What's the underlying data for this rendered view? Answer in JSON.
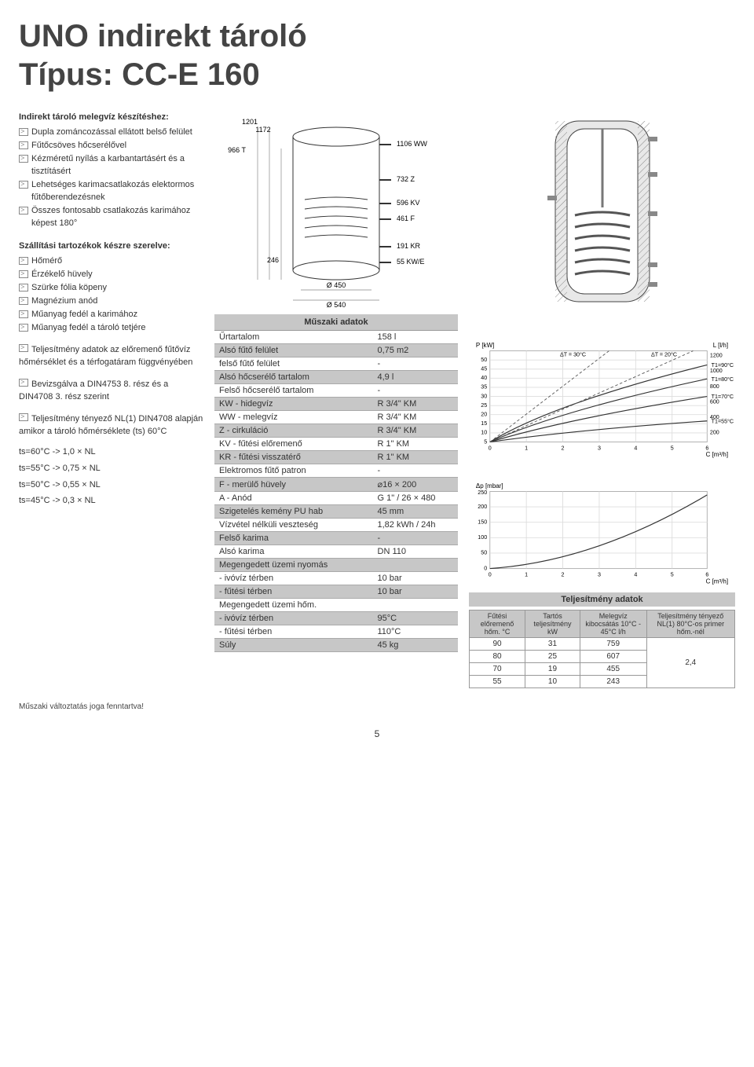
{
  "title_line1": "UNO indirekt tároló",
  "title_line2": "Típus: CC-E 160",
  "section1_head": "Indirekt tároló melegvíz készítéshez:",
  "section1_items": [
    "Dupla zománcozással ellátott belső felület",
    "Fűtőcsöves hőcserélővel",
    "Kézméretű nyílás a karbantartásért és a tisztításért",
    "Lehetséges karimacsatlakozás elektormos fűtőberendezésnek",
    "Összes fontosabb csatlakozás karimához képest 180°"
  ],
  "section2_head": "Szállítási tartozékok készre szerelve:",
  "section2_items": [
    "Hőmérő",
    "Érzékelő hüvely",
    "Szürke fólia köpeny",
    "Magnézium anód",
    "Műanyag fedél a karimához",
    "Műanyag fedél a tároló tetjére"
  ],
  "para1": "Teljesítmény adatok az előremenő fűtővíz hőmérséklet és a térfogatáram függvényében",
  "para2": "Bevizsgálva a DIN4753 8. rész és a DIN4708 3. rész szerint",
  "para3": "Teljesítmény tényező NL(1) DIN4708 alapján amikor a tároló hőmérséklete (ts) 60°C",
  "ts_lines": [
    "ts=60°C -> 1,0 × NL",
    "ts=55°C -> 0,75 × NL",
    "ts=50°C -> 0,55 × NL",
    "ts=45°C -> 0,3 × NL"
  ],
  "spec_header": "Műszaki adatok",
  "spec_rows": [
    {
      "k": "Űrtartalom",
      "v": "158 l",
      "hl": false
    },
    {
      "k": "Alsó fűtő felület",
      "v": "0,75 m2",
      "hl": true
    },
    {
      "k": "felső fűtő felület",
      "v": "-",
      "hl": false
    },
    {
      "k": "Alsó hőcserélő tartalom",
      "v": "4,9 l",
      "hl": true
    },
    {
      "k": "Felső hőcserélő tartalom",
      "v": "-",
      "hl": false
    },
    {
      "k": "KW - hidegvíz",
      "v": "R 3/4\" KM",
      "hl": true
    },
    {
      "k": "WW - melegvíz",
      "v": "R 3/4\" KM",
      "hl": false
    },
    {
      "k": "Z - cirkuláció",
      "v": "R 3/4\" KM",
      "hl": true
    },
    {
      "k": "KV - fűtési előremenő",
      "v": "R 1\" KM",
      "hl": false
    },
    {
      "k": "KR - fűtési visszatérő",
      "v": "R 1\" KM",
      "hl": true
    },
    {
      "k": "Elektromos fűtő patron",
      "v": "-",
      "hl": false
    },
    {
      "k": "F - merülő hüvely",
      "v": "⌀16 × 200",
      "hl": true
    },
    {
      "k": "A - Anód",
      "v": "G 1\" / 26 × 480",
      "hl": false
    },
    {
      "k": "Szigetelés kemény PU hab",
      "v": "45 mm",
      "hl": true
    },
    {
      "k": "Vízvétel nélküli veszteség",
      "v": "1,82 kWh / 24h",
      "hl": false
    },
    {
      "k": "Felső karima",
      "v": "-",
      "hl": true
    },
    {
      "k": "Alsó karima",
      "v": "DN 110",
      "hl": false
    },
    {
      "k": "Megengedett üzemi nyomás",
      "v": "",
      "hl": true
    },
    {
      "k": " - ivóvíz térben",
      "v": "10 bar",
      "hl": false
    },
    {
      "k": " - fűtési térben",
      "v": "10 bar",
      "hl": true
    },
    {
      "k": "Megengedett üzemi hőm.",
      "v": "",
      "hl": false
    },
    {
      "k": " - ivóvíz térben",
      "v": "95°C",
      "hl": true
    },
    {
      "k": " - fűtési térben",
      "v": "110°C",
      "hl": false
    },
    {
      "k": "Súly",
      "v": "45 kg",
      "hl": true
    }
  ],
  "diagram_labels": {
    "top": [
      "1201",
      "1172",
      "966 T",
      "246"
    ],
    "right": [
      "1106 WW",
      "732 Z",
      "596 KV",
      "461 F",
      "191 KR",
      "55 KW/E"
    ],
    "bottom": [
      "Ø 450",
      "Ø 540"
    ]
  },
  "diagram_colors": {
    "stroke": "#333",
    "grid": "#999"
  },
  "chart1": {
    "type": "line",
    "axis_left_label": "P [kW]",
    "axis_right_label": "L [l/h]",
    "y_left_ticks": [
      5,
      10,
      15,
      20,
      25,
      30,
      35,
      40,
      45,
      50
    ],
    "y_right_ticks": [
      200,
      400,
      600,
      800,
      1000,
      1200
    ],
    "x_ticks": [
      0,
      1,
      2,
      3,
      4,
      5,
      6
    ],
    "x_label": "C [m³/h]",
    "annotations": [
      "ΔT = 30°C",
      "ΔT = 20°C",
      "T1 = 90°C",
      "T1 = 80°C",
      "T1 = 70°C",
      "T1 = 55°C"
    ],
    "line_color": "#333",
    "dash_color": "#555",
    "grid_color": "#ccc"
  },
  "chart2": {
    "type": "line",
    "y_label": "Δp [mbar]",
    "y_ticks": [
      0,
      50,
      100,
      150,
      200,
      250
    ],
    "x_ticks": [
      0,
      1,
      2,
      3,
      4,
      5,
      6
    ],
    "x_label": "C [m³/h]",
    "line_color": "#333",
    "grid_color": "#ccc"
  },
  "perf_header": "Teljesítmény adatok",
  "perf_cols": [
    "Fűtési előremenő hőm. °C",
    "Tartós teljesítmény kW",
    "Melegvíz kibocsátás 10°C - 45°C l/h",
    "Teljesítmény tényező NL(1) 80°C-os primer hőm.-nél"
  ],
  "perf_rows": [
    [
      "90",
      "31",
      "759",
      ""
    ],
    [
      "80",
      "25",
      "607",
      "2,4"
    ],
    [
      "70",
      "19",
      "455",
      ""
    ],
    [
      "55",
      "10",
      "243",
      ""
    ]
  ],
  "footnote": "Műszaki változtatás joga fenntartva!",
  "page_num": "5"
}
